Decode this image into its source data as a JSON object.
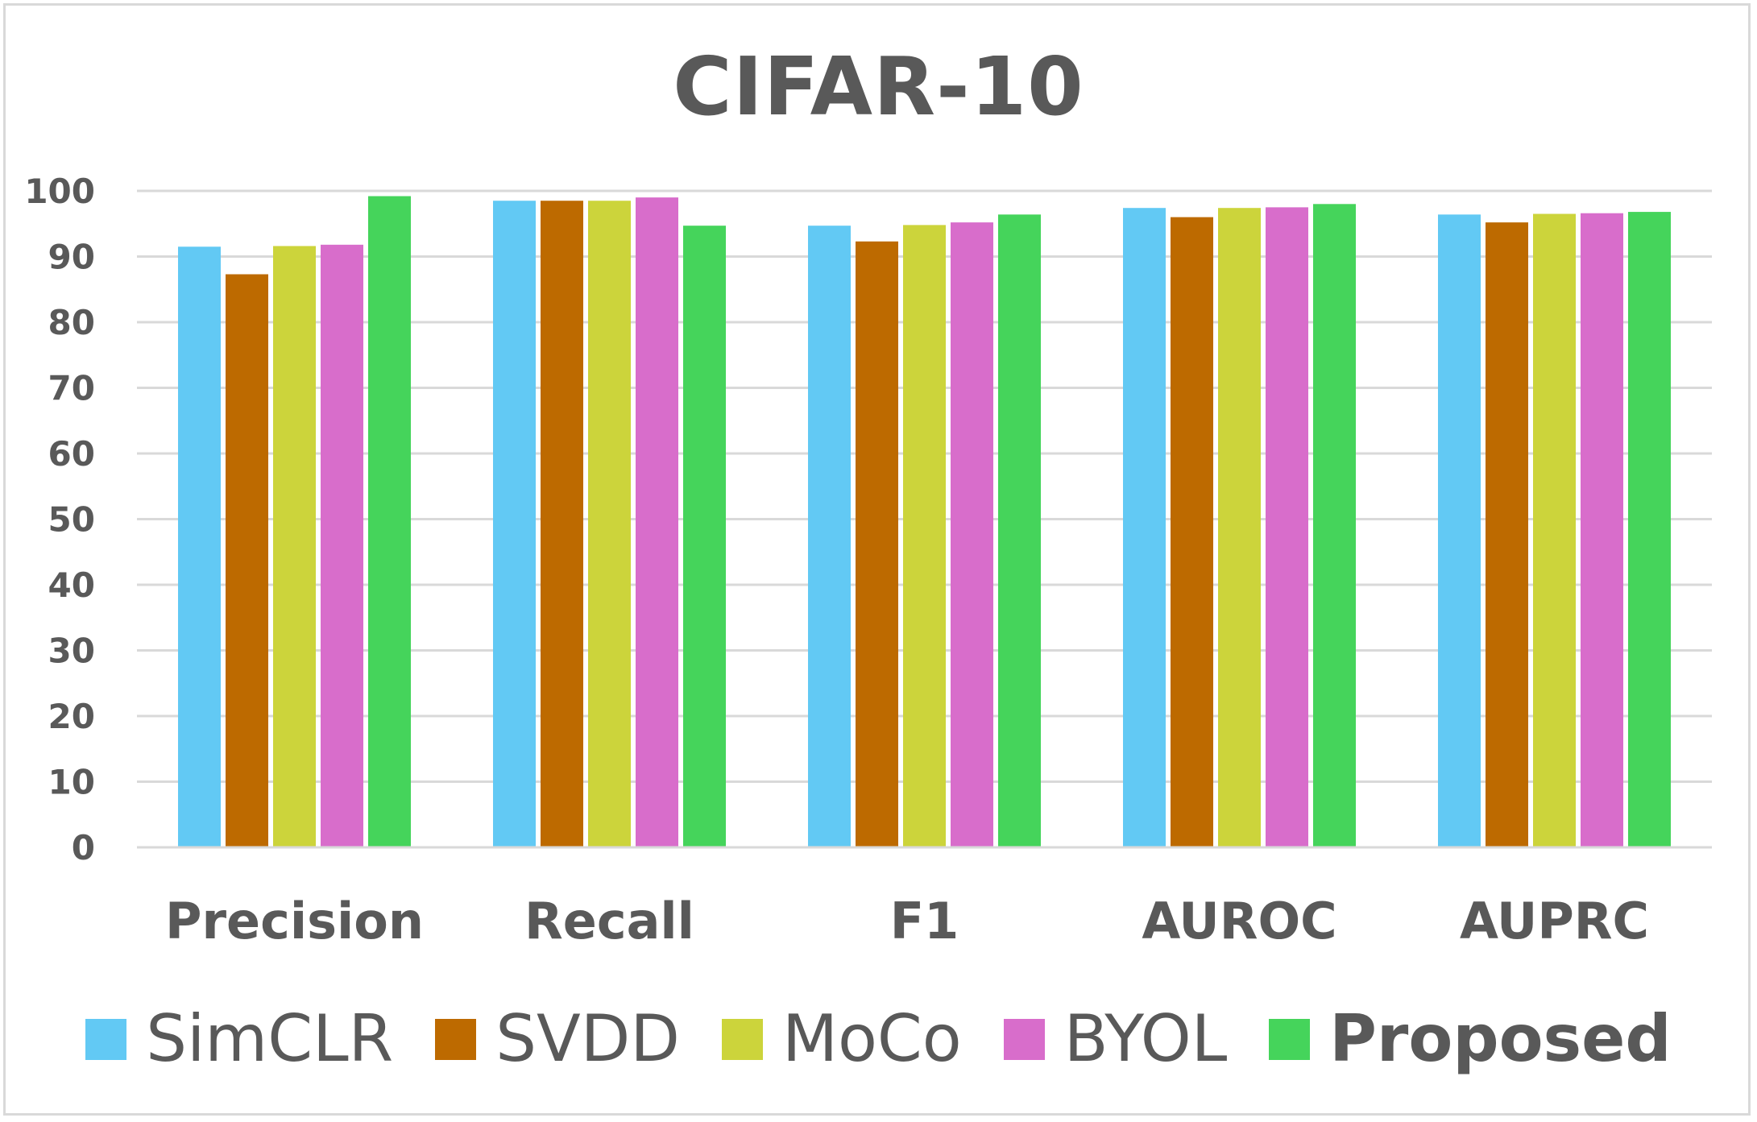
{
  "chart_data": {
    "type": "bar",
    "title": "CIFAR-10",
    "xlabel": "",
    "ylabel": "",
    "ylim": [
      0,
      100
    ],
    "yticks": [
      "0",
      "10",
      "20",
      "30",
      "40",
      "50",
      "60",
      "70",
      "80",
      "90",
      "100"
    ],
    "grid": true,
    "legend_position": "bottom",
    "categories": [
      "Precision",
      "Recall",
      "F1",
      "AUROC",
      "AUPRC"
    ],
    "series": [
      {
        "name": "SimCLR",
        "color": "#62c9f4",
        "values": [
          91.5,
          98.5,
          94.7,
          97.4,
          96.4
        ]
      },
      {
        "name": "SVDD",
        "color": "#bd6a00",
        "values": [
          87.3,
          98.5,
          92.3,
          96.0,
          95.2
        ]
      },
      {
        "name": "MoCo",
        "color": "#ccd43b",
        "values": [
          91.6,
          98.5,
          94.8,
          97.4,
          96.5
        ]
      },
      {
        "name": "BYOL",
        "color": "#d86dcb",
        "values": [
          91.8,
          99.0,
          95.2,
          97.5,
          96.6
        ]
      },
      {
        "name": "Proposed",
        "color": "#45d45b",
        "values": [
          99.2,
          94.7,
          96.4,
          98.0,
          96.8
        ]
      }
    ]
  }
}
